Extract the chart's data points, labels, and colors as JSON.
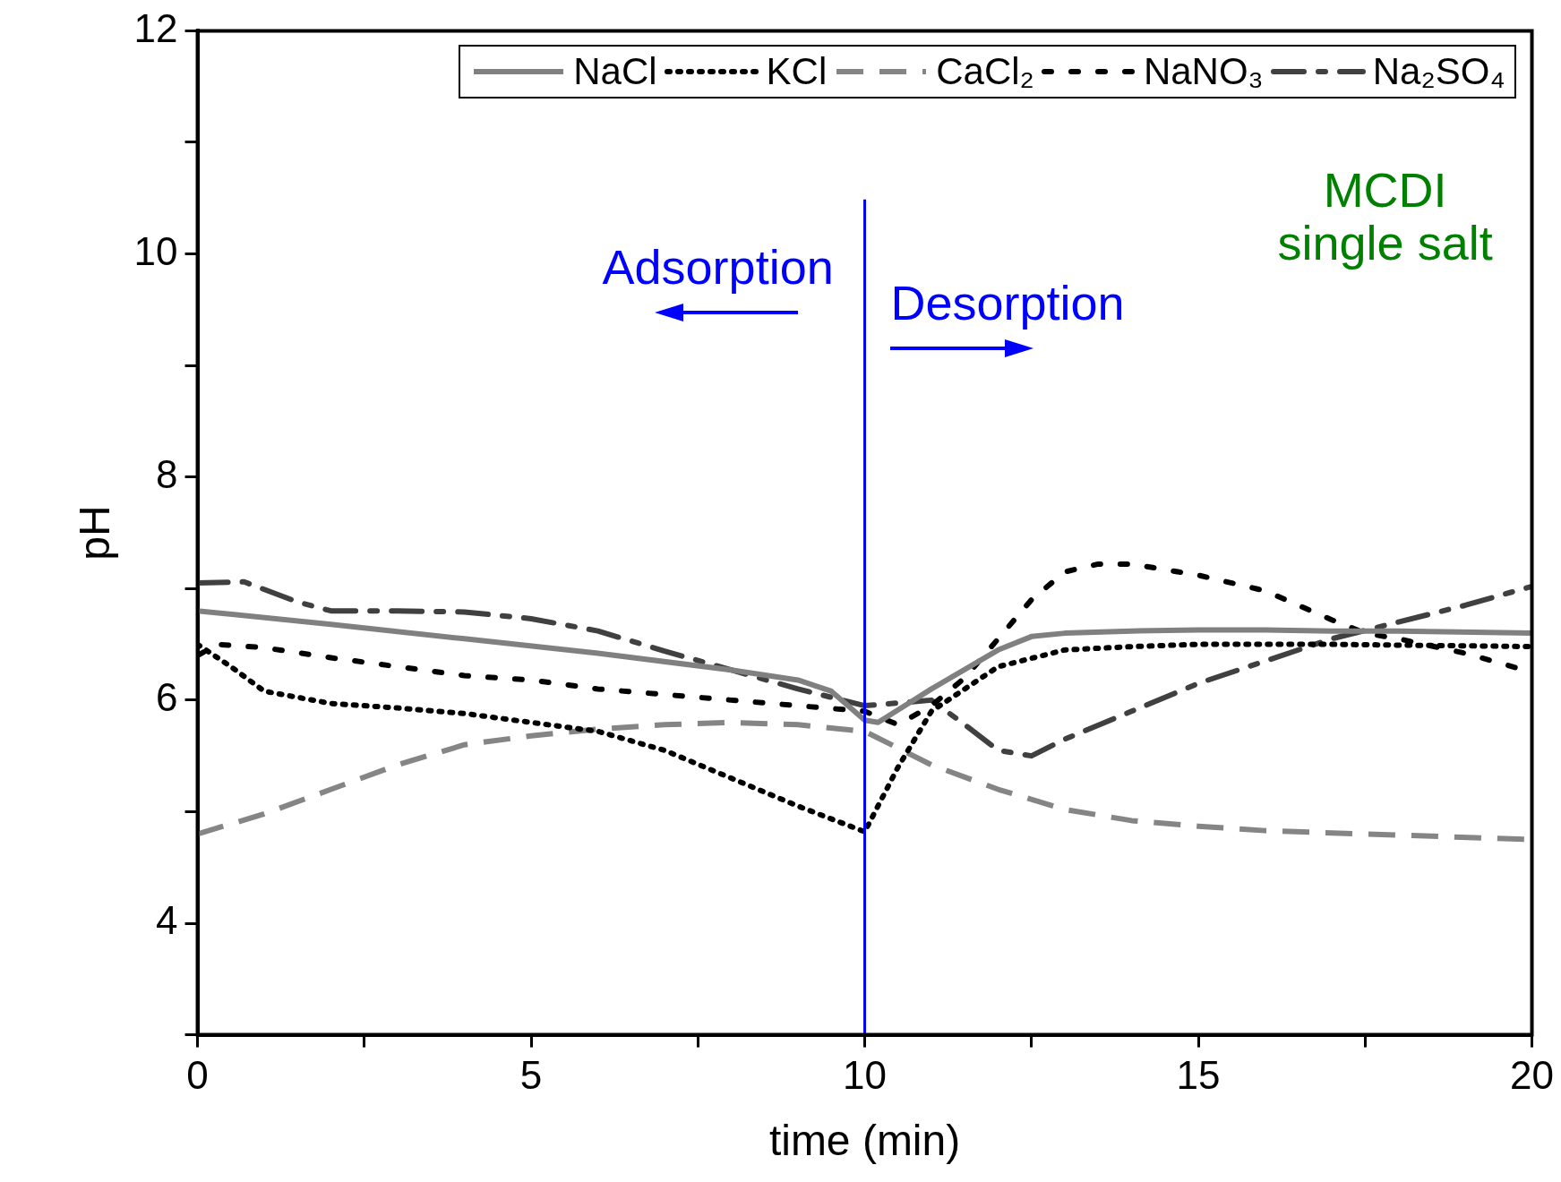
{
  "chart_data": {
    "type": "line",
    "xlabel": "time (min)",
    "ylabel": "pH",
    "xlim": [
      0,
      20
    ],
    "ylim": [
      3,
      12
    ],
    "xticks": [
      0,
      {
        "value": 2.5,
        "label": null
      },
      5,
      {
        "value": 7.5,
        "label": null
      },
      10,
      {
        "value": 12.5,
        "label": null
      },
      15,
      {
        "value": 17.5,
        "label": null
      },
      20
    ],
    "yticks": [
      {
        "value": 3,
        "label": null
      },
      4,
      {
        "value": 5,
        "label": null
      },
      6,
      {
        "value": 7,
        "label": null
      },
      8,
      {
        "value": 9,
        "label": null
      },
      10,
      {
        "value": 11,
        "label": null
      },
      12
    ],
    "grid": false,
    "legend": "top",
    "marker": "none",
    "series": [
      {
        "name": "NaCl",
        "color": "#808080",
        "line_style": "solid",
        "x": [
          0,
          2,
          4,
          6,
          8,
          9,
          9.5,
          10,
          10.2,
          11,
          12,
          12.5,
          13,
          14,
          15,
          16,
          17,
          18,
          20
        ],
        "values": [
          6.8,
          6.68,
          6.55,
          6.42,
          6.27,
          6.18,
          6.08,
          5.82,
          5.8,
          6.1,
          6.45,
          6.57,
          6.6,
          6.62,
          6.63,
          6.63,
          6.62,
          6.62,
          6.6
        ]
      },
      {
        "name": "KCl",
        "color": "#000000",
        "line_style": "dotted",
        "x": [
          0,
          0.5,
          1,
          2,
          3,
          4,
          5,
          6,
          7,
          8,
          9,
          10,
          10.5,
          11,
          12,
          13,
          14,
          15,
          17,
          20
        ],
        "values": [
          6.5,
          6.3,
          6.08,
          5.97,
          5.93,
          5.88,
          5.8,
          5.72,
          5.55,
          5.3,
          5.05,
          4.82,
          5.4,
          5.9,
          6.3,
          6.45,
          6.48,
          6.5,
          6.5,
          6.48
        ]
      },
      {
        "name": "CaCl₂",
        "color": "#858585",
        "line_style": "dashed",
        "x": [
          0,
          1,
          2,
          3,
          4,
          5,
          6,
          7,
          8,
          9,
          10,
          11,
          12,
          13,
          14,
          15,
          16,
          18,
          20
        ],
        "values": [
          4.8,
          4.98,
          5.2,
          5.42,
          5.6,
          5.68,
          5.74,
          5.78,
          5.8,
          5.78,
          5.72,
          5.42,
          5.2,
          5.02,
          4.92,
          4.87,
          4.83,
          4.79,
          4.75
        ]
      },
      {
        "name": "NaNO₃",
        "color": "#000000",
        "line_style": "short_dashed",
        "x": [
          0,
          0.3,
          1,
          2,
          3,
          4,
          5,
          6,
          7,
          8,
          9,
          10,
          10.5,
          11,
          11.5,
          12,
          12.5,
          13,
          13.5,
          14,
          15,
          16,
          17,
          17.5,
          18,
          19,
          20
        ],
        "values": [
          6.4,
          6.5,
          6.47,
          6.38,
          6.3,
          6.22,
          6.18,
          6.1,
          6.05,
          6.0,
          5.95,
          5.9,
          5.78,
          5.95,
          6.2,
          6.55,
          6.9,
          7.15,
          7.22,
          7.22,
          7.12,
          6.98,
          6.72,
          6.6,
          6.55,
          6.42,
          6.25
        ]
      },
      {
        "name": "Na₂SO₄",
        "color": "#404040",
        "line_style": "dash_dot",
        "x": [
          0,
          0.7,
          1.5,
          2,
          3,
          4,
          5,
          6,
          7,
          8,
          9,
          10,
          11,
          11.5,
          12,
          12.5,
          13,
          14,
          15,
          16,
          17,
          18,
          19,
          20
        ],
        "values": [
          7.05,
          7.06,
          6.88,
          6.8,
          6.8,
          6.79,
          6.73,
          6.62,
          6.44,
          6.27,
          6.1,
          5.95,
          6.0,
          5.78,
          5.55,
          5.5,
          5.65,
          5.9,
          6.15,
          6.35,
          6.55,
          6.7,
          6.85,
          7.02
        ]
      }
    ],
    "ref_lines": [
      {
        "axis": "x",
        "value": 10,
        "color": "#0000ff"
      }
    ],
    "annotations": [
      "Adsorption",
      "Desorption",
      "MCDI\nsingle salt"
    ]
  }
}
